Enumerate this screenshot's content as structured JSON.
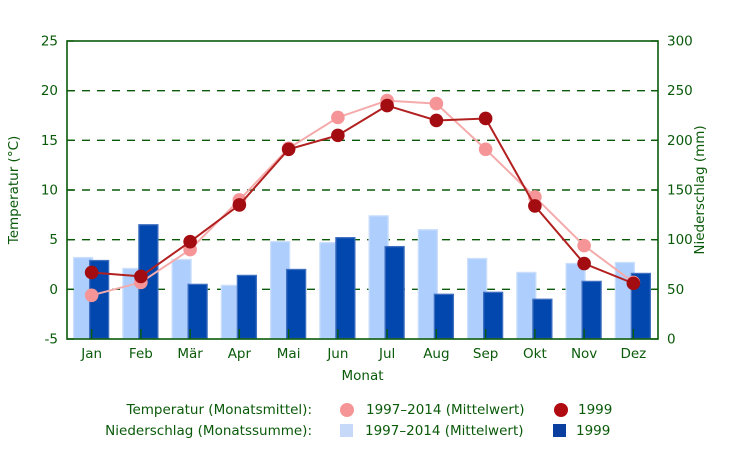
{
  "chart_data": {
    "type": "combo",
    "categories": [
      "Jan",
      "Feb",
      "Mär",
      "Apr",
      "Mai",
      "Jun",
      "Jul",
      "Aug",
      "Sep",
      "Okt",
      "Nov",
      "Dez"
    ],
    "series": [
      {
        "name": "Temperatur 1997–2014 (Mittelwert)",
        "type": "line",
        "axis": "left",
        "values": [
          -0.6,
          0.7,
          4.0,
          9.0,
          14.2,
          17.3,
          19.0,
          18.7,
          14.1,
          9.3,
          4.4,
          0.7
        ]
      },
      {
        "name": "Temperatur 1999",
        "type": "line",
        "axis": "left",
        "values": [
          1.7,
          1.3,
          4.8,
          8.5,
          14.1,
          15.5,
          18.5,
          17.0,
          17.2,
          8.4,
          2.6,
          0.6
        ]
      },
      {
        "name": "Niederschlag 1997–2014 (Mittelwert)",
        "type": "bar",
        "axis": "right",
        "values": [
          82,
          71,
          80,
          54,
          98,
          97,
          124,
          110,
          81,
          67,
          76,
          77
        ]
      },
      {
        "name": "Niederschlag 1999",
        "type": "bar",
        "axis": "right",
        "values": [
          79,
          115,
          55,
          64,
          70,
          102,
          93,
          45,
          47,
          40,
          58,
          66
        ]
      }
    ],
    "xlabel": "Monat",
    "ylabel_left": "Temperatur (°C)",
    "ylabel_right": "Niederschlag (mm)",
    "ylim_left": [
      -5,
      25
    ],
    "ylim_right": [
      0,
      300
    ],
    "yticks_left": [
      -5,
      0,
      5,
      10,
      15,
      20,
      25
    ],
    "yticks_right": [
      0,
      50,
      100,
      150,
      200,
      250,
      300
    ],
    "grid": "horizontal dashed at every 5 °C / 50 mm",
    "legend_position": "bottom"
  },
  "legend": {
    "temp_label": "Temperatur (Monatsmittel):",
    "precip_label": "Niederschlag (Monatssumme):",
    "mean_label": "1997–2014 (Mittelwert)",
    "year_label": "1999"
  },
  "colors": {
    "axis": "#0a5a0a",
    "temp_mean_point": "#f59597",
    "temp_mean_line": "#f5abab",
    "temp_1999_point": "#a30d12",
    "temp_1999_line": "#b22020",
    "precip_mean_fill": "#aecffe",
    "precip_mean_border": "#cbdffc",
    "precip_1999_fill": "#0147ad",
    "precip_1999_border": "#3f6fc0",
    "legend_temp_mean": "#f59597",
    "legend_temp_1999": "#b00b11",
    "legend_precip_mean": "#c6d9f8",
    "legend_precip_1999": "#0b3f9f"
  }
}
